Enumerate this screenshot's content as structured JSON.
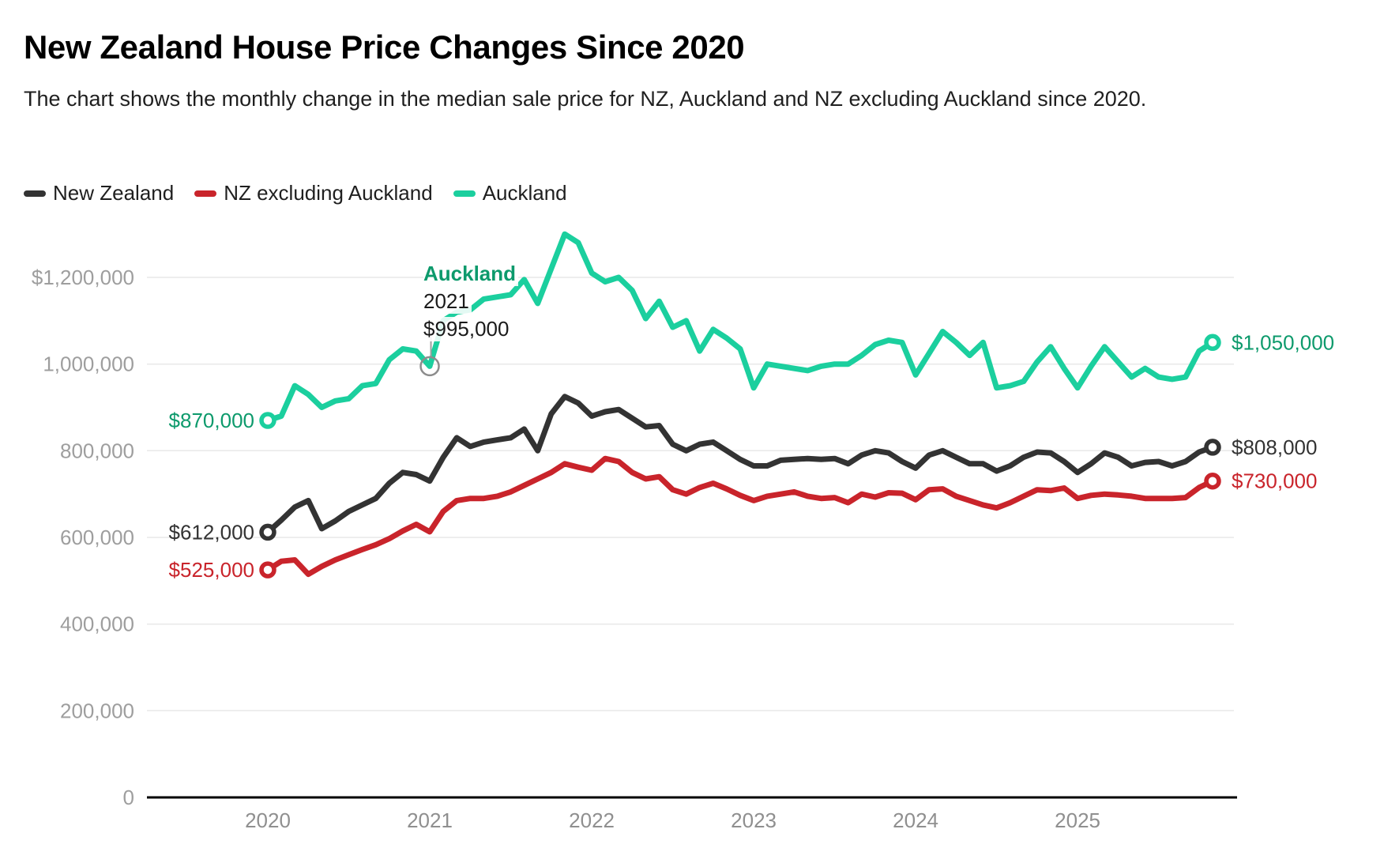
{
  "header": {
    "title": "New Zealand House Price Changes Since 2020",
    "subtitle": "The chart shows the monthly change in the median sale price for NZ, Auckland and NZ excluding Auckland since 2020."
  },
  "legend": [
    {
      "label": "New Zealand",
      "color": "#333333"
    },
    {
      "label": "NZ excluding Auckland",
      "color": "#c9242b"
    },
    {
      "label": "Auckland",
      "color": "#1bcf9e"
    }
  ],
  "colors": {
    "background": "#ffffff",
    "gridline": "#e8e8e8",
    "axis_line": "#000000",
    "tick_label": "#9e9e9e",
    "hover_ring": "#8c8c8c",
    "nz_line": "#333333",
    "nz_ex_akl_line": "#c9242b",
    "auckland_line": "#1bcf9e",
    "auckland_label": "#0d9a6c"
  },
  "chart_data": {
    "type": "line",
    "title": "New Zealand House Price Changes Since 2020",
    "x_unit": "month",
    "x_start": "2020-01",
    "x_end": "2025-11",
    "x_tick_labels": [
      "2020",
      "2021",
      "2022",
      "2023",
      "2024",
      "2025"
    ],
    "x_tick_month_index": [
      0,
      12,
      24,
      36,
      48,
      60
    ],
    "y_ticks": [
      {
        "value": 1200000,
        "label": "$1,200,000"
      },
      {
        "value": 1000000,
        "label": "1,000,000"
      },
      {
        "value": 800000,
        "label": "800,000"
      },
      {
        "value": 600000,
        "label": "600,000"
      },
      {
        "value": 400000,
        "label": "400,000"
      },
      {
        "value": 200000,
        "label": "200,000"
      },
      {
        "value": 0,
        "label": "0"
      }
    ],
    "ylim": [
      0,
      1366000
    ],
    "grid": "horizontal",
    "legend_position": "top-left",
    "series": [
      {
        "name": "New Zealand",
        "color": "#333333",
        "label_color": "#333333",
        "start_label": "$612,000",
        "end_label": "$808,000",
        "values": [
          612000,
          640000,
          670000,
          685000,
          620000,
          638000,
          660000,
          675000,
          690000,
          725000,
          750000,
          745000,
          730000,
          785000,
          830000,
          810000,
          820000,
          825000,
          830000,
          850000,
          800000,
          885000,
          925000,
          910000,
          880000,
          890000,
          895000,
          875000,
          855000,
          858000,
          815000,
          800000,
          815000,
          820000,
          800000,
          780000,
          765000,
          765000,
          778000,
          780000,
          782000,
          780000,
          782000,
          770000,
          790000,
          800000,
          795000,
          775000,
          760000,
          790000,
          800000,
          785000,
          770000,
          770000,
          753000,
          765000,
          785000,
          797000,
          795000,
          775000,
          750000,
          770000,
          795000,
          785000,
          765000,
          773000,
          775000,
          765000,
          775000,
          797000,
          808000
        ]
      },
      {
        "name": "NZ excluding Auckland",
        "color": "#c9242b",
        "label_color": "#c9242b",
        "start_label": "$525,000",
        "end_label": "$730,000",
        "values": [
          525000,
          545000,
          548000,
          515000,
          533000,
          548000,
          560000,
          572000,
          583000,
          597000,
          615000,
          630000,
          613000,
          660000,
          685000,
          690000,
          690000,
          695000,
          705000,
          720000,
          735000,
          750000,
          770000,
          762000,
          755000,
          782000,
          775000,
          750000,
          735000,
          740000,
          710000,
          700000,
          715000,
          725000,
          712000,
          697000,
          685000,
          695000,
          700000,
          705000,
          695000,
          690000,
          692000,
          680000,
          700000,
          693000,
          703000,
          702000,
          687000,
          710000,
          712000,
          695000,
          685000,
          675000,
          668000,
          680000,
          695000,
          710000,
          708000,
          714000,
          690000,
          697000,
          700000,
          698000,
          695000,
          690000,
          690000,
          690000,
          692000,
          715000,
          730000
        ]
      },
      {
        "name": "Auckland",
        "color": "#1bcf9e",
        "label_color": "#0d9a6c",
        "start_label": "$870,000",
        "end_label": "$1,050,000",
        "values": [
          870000,
          880000,
          950000,
          930000,
          900000,
          915000,
          920000,
          950000,
          955000,
          1010000,
          1035000,
          1030000,
          995000,
          1100000,
          1120000,
          1125000,
          1150000,
          1155000,
          1160000,
          1195000,
          1140000,
          1220000,
          1300000,
          1280000,
          1210000,
          1190000,
          1200000,
          1170000,
          1105000,
          1145000,
          1085000,
          1100000,
          1030000,
          1080000,
          1060000,
          1035000,
          945000,
          1000000,
          995000,
          990000,
          985000,
          995000,
          1000000,
          1000000,
          1020000,
          1045000,
          1055000,
          1050000,
          975000,
          1025000,
          1075000,
          1050000,
          1020000,
          1050000,
          945000,
          950000,
          960000,
          1005000,
          1040000,
          990000,
          945000,
          995000,
          1040000,
          1005000,
          970000,
          990000,
          970000,
          965000,
          970000,
          1030000,
          1050000
        ]
      }
    ],
    "annotation": {
      "series": "Auckland",
      "month_index": 12,
      "name_label": "Auckland",
      "year_label": "2021",
      "value_label": "$995,000"
    }
  }
}
